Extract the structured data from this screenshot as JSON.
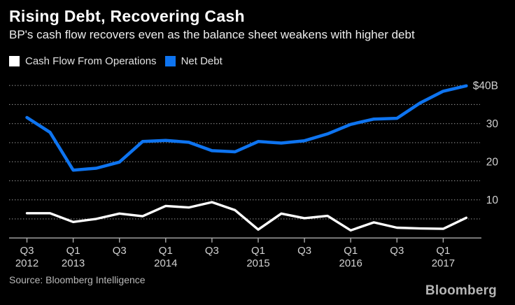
{
  "header": {
    "title": "Rising Debt, Recovering Cash",
    "subtitle": "BP's cash flow recovers even as the balance sheet weakens with higher debt"
  },
  "legend": {
    "items": [
      {
        "label": "Cash Flow From Operations",
        "color": "#ffffff"
      },
      {
        "label": "Net Debt",
        "color": "#0e74f0"
      }
    ]
  },
  "chart_data": {
    "type": "line",
    "x": [
      "Q3 2012",
      "Q4 2012",
      "Q1 2013",
      "Q2 2013",
      "Q3 2013",
      "Q4 2013",
      "Q1 2014",
      "Q2 2014",
      "Q3 2014",
      "Q4 2014",
      "Q1 2015",
      "Q2 2015",
      "Q3 2015",
      "Q4 2015",
      "Q1 2016",
      "Q2 2016",
      "Q3 2016",
      "Q4 2016",
      "Q1 2017",
      "Q2 2017"
    ],
    "series": [
      {
        "name": "Cash Flow From Operations",
        "color": "#ffffff",
        "values": [
          6.5,
          6.5,
          4.2,
          5.0,
          6.4,
          5.7,
          8.4,
          8.0,
          9.4,
          7.3,
          2.2,
          6.4,
          5.2,
          5.8,
          2.0,
          4.1,
          2.7,
          2.5,
          2.4,
          5.3
        ]
      },
      {
        "name": "Net Debt",
        "color": "#0e74f0",
        "values": [
          31.6,
          27.7,
          17.8,
          18.3,
          19.9,
          25.3,
          25.6,
          25.1,
          22.9,
          22.6,
          25.3,
          24.9,
          25.5,
          27.3,
          29.8,
          31.2,
          31.4,
          35.4,
          38.5,
          39.9
        ]
      }
    ],
    "title": "Rising Debt, Recovering Cash",
    "xlabel": "",
    "ylabel": "",
    "ylim": [
      0,
      42.5
    ],
    "grid": true,
    "legend_position": "top-left",
    "unit": "$B",
    "gridline_values": [
      40,
      35,
      30,
      25,
      20,
      15,
      10,
      5
    ],
    "yticks": [
      {
        "value": 40,
        "label": "$40B"
      },
      {
        "value": 30,
        "label": "30"
      },
      {
        "value": 20,
        "label": "20"
      },
      {
        "value": 10,
        "label": "10"
      }
    ],
    "xticks": [
      {
        "index": 0,
        "line1": "Q3",
        "line2": "2012"
      },
      {
        "index": 2,
        "line1": "Q1",
        "line2": "2013"
      },
      {
        "index": 4,
        "line1": "Q3",
        "line2": ""
      },
      {
        "index": 6,
        "line1": "Q1",
        "line2": "2014"
      },
      {
        "index": 8,
        "line1": "Q3",
        "line2": ""
      },
      {
        "index": 10,
        "line1": "Q1",
        "line2": "2015"
      },
      {
        "index": 12,
        "line1": "Q3",
        "line2": ""
      },
      {
        "index": 14,
        "line1": "Q1",
        "line2": "2016"
      },
      {
        "index": 16,
        "line1": "Q3",
        "line2": ""
      },
      {
        "index": 18,
        "line1": "Q1",
        "line2": "2017"
      }
    ]
  },
  "footer": {
    "source": "Source: Bloomberg Intelligence",
    "brand": "Bloomberg"
  }
}
